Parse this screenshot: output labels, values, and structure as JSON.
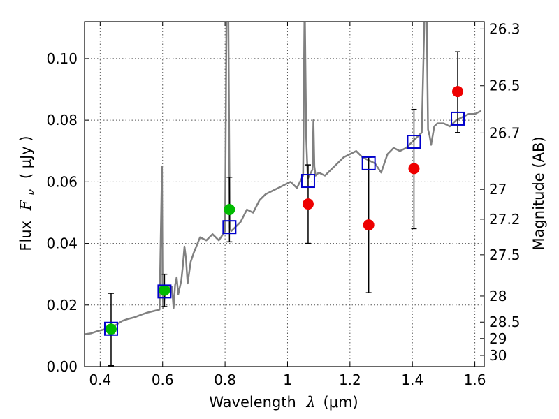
{
  "chart_data": {
    "type": "scatter",
    "xlabel": "Wavelength",
    "xlabel_symbol": "λ",
    "xlabel_unit": "(μm)",
    "ylabel": "Flux",
    "ylabel_symbol": "F",
    "ylabel_subscript": "ν",
    "ylabel_unit": "( μJy )",
    "y2label": "Magnitude (AB)",
    "xlim": [
      0.35,
      1.63
    ],
    "ylim": [
      0.0,
      0.112
    ],
    "grid": true,
    "xticks": [
      0.4,
      0.6,
      0.8,
      1.0,
      1.2,
      1.4,
      1.6
    ],
    "xtick_labels": [
      "0.4",
      "0.6",
      "0.8",
      "1",
      "1.2",
      "1.4",
      "1.6"
    ],
    "yticks": [
      0.0,
      0.02,
      0.04,
      0.06,
      0.08,
      0.1
    ],
    "ytick_labels": [
      "0.00",
      "0.02",
      "0.04",
      "0.06",
      "0.08",
      "0.10"
    ],
    "y2ticks": [
      26.3,
      26.5,
      26.7,
      27,
      27.2,
      27.5,
      28,
      28.5,
      29,
      30
    ],
    "y2tick_labels": [
      "26.3",
      "26.5",
      "26.7",
      "27",
      "27.2",
      "27.5",
      "28",
      "28.5",
      "29",
      "30"
    ],
    "model_spectrum": {
      "color": "#808080",
      "x": [
        0.35,
        0.37,
        0.39,
        0.41,
        0.43,
        0.45,
        0.47,
        0.49,
        0.51,
        0.53,
        0.55,
        0.57,
        0.59,
        0.598,
        0.6,
        0.602,
        0.61,
        0.63,
        0.635,
        0.64,
        0.645,
        0.65,
        0.66,
        0.665,
        0.67,
        0.675,
        0.68,
        0.69,
        0.7,
        0.72,
        0.74,
        0.76,
        0.78,
        0.8,
        0.805,
        0.81,
        0.815,
        0.82,
        0.83,
        0.85,
        0.87,
        0.89,
        0.91,
        0.93,
        0.95,
        0.97,
        0.99,
        1.01,
        1.03,
        1.05,
        1.055,
        1.06,
        1.065,
        1.07,
        1.08,
        1.083,
        1.086,
        1.09,
        1.1,
        1.12,
        1.14,
        1.16,
        1.18,
        1.2,
        1.22,
        1.24,
        1.26,
        1.28,
        1.3,
        1.32,
        1.34,
        1.36,
        1.38,
        1.4,
        1.42,
        1.43,
        1.44,
        1.445,
        1.45,
        1.455,
        1.46,
        1.47,
        1.48,
        1.5,
        1.52,
        1.54,
        1.56,
        1.58,
        1.6,
        1.62
      ],
      "y": [
        0.0105,
        0.0108,
        0.0115,
        0.012,
        0.0128,
        0.0135,
        0.0148,
        0.0155,
        0.016,
        0.0168,
        0.0175,
        0.018,
        0.0185,
        0.065,
        0.025,
        0.019,
        0.0255,
        0.026,
        0.019,
        0.0265,
        0.029,
        0.0235,
        0.028,
        0.033,
        0.039,
        0.035,
        0.027,
        0.034,
        0.037,
        0.042,
        0.041,
        0.043,
        0.041,
        0.044,
        0.12,
        0.12,
        0.045,
        0.044,
        0.045,
        0.047,
        0.051,
        0.05,
        0.054,
        0.056,
        0.057,
        0.058,
        0.059,
        0.06,
        0.058,
        0.062,
        0.12,
        0.074,
        0.061,
        0.062,
        0.064,
        0.08,
        0.065,
        0.062,
        0.063,
        0.062,
        0.064,
        0.066,
        0.068,
        0.069,
        0.07,
        0.068,
        0.067,
        0.066,
        0.063,
        0.069,
        0.071,
        0.07,
        0.071,
        0.073,
        0.075,
        0.076,
        0.12,
        0.12,
        0.077,
        0.075,
        0.072,
        0.078,
        0.079,
        0.079,
        0.078,
        0.08,
        0.081,
        0.082,
        0.082,
        0.083
      ]
    },
    "series": [
      {
        "marker": "circle-filled",
        "color": "#00bb00",
        "points": [
          {
            "x": 0.435,
            "y": 0.0122
          },
          {
            "x": 0.606,
            "y": 0.0248
          },
          {
            "x": 0.814,
            "y": 0.051
          }
        ]
      },
      {
        "marker": "circle-filled",
        "color": "#ee0000",
        "points": [
          {
            "x": 1.066,
            "y": 0.0528,
            "ylow": 0.04,
            "yhigh": 0.0655
          },
          {
            "x": 1.26,
            "y": 0.046,
            "ylow": 0.024,
            "yhigh": 0.068
          },
          {
            "x": 1.405,
            "y": 0.0643,
            "ylow": 0.0448,
            "yhigh": 0.0835
          },
          {
            "x": 1.545,
            "y": 0.0893,
            "ylow": 0.076,
            "yhigh": 0.1022
          }
        ]
      },
      {
        "marker": "square-open",
        "color": "#0000cc",
        "points": [
          {
            "x": 0.435,
            "y": 0.0123
          },
          {
            "x": 0.606,
            "y": 0.0244
          },
          {
            "x": 0.814,
            "y": 0.0453
          },
          {
            "x": 1.066,
            "y": 0.0603
          },
          {
            "x": 1.26,
            "y": 0.066
          },
          {
            "x": 1.405,
            "y": 0.073
          },
          {
            "x": 1.545,
            "y": 0.0805
          }
        ]
      }
    ],
    "errorbars_green": [
      {
        "x": 0.435,
        "ylow": 0.0003,
        "yhigh": 0.0238
      },
      {
        "x": 0.606,
        "ylow": 0.0195,
        "yhigh": 0.03
      },
      {
        "x": 0.814,
        "ylow": 0.0405,
        "yhigh": 0.0615
      }
    ]
  }
}
